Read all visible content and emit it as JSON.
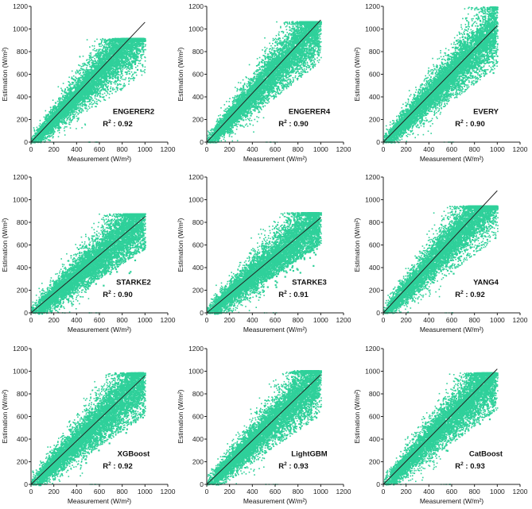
{
  "chart_data": [
    {
      "type": "scatter",
      "model": "ENGERER2",
      "r2_prefix": "R",
      "r2_sup": "2",
      "r2_value": " : 0.92",
      "xlabel": "Measurement (W/m²)",
      "ylabel": "Estimation (W/m²)",
      "xlim": [
        0,
        1200
      ],
      "ylim": [
        0,
        1200
      ],
      "xticks": [
        0,
        200,
        400,
        600,
        800,
        1000,
        1200
      ],
      "yticks": [
        0,
        200,
        400,
        600,
        800,
        1000,
        1200
      ],
      "point_color": "#2fd09a",
      "fit_line": {
        "x": [
          0,
          1000
        ],
        "y": [
          0,
          1060
        ]
      },
      "cloud_max_y": 920,
      "min_y_at_max_x": 700
    },
    {
      "type": "scatter",
      "model": "ENGERER4",
      "r2_prefix": "R",
      "r2_sup": "2",
      "r2_value": " : 0.90",
      "xlabel": "Measurement (W/m²)",
      "ylabel": "Estimation (W/m²)",
      "xlim": [
        0,
        1200
      ],
      "ylim": [
        0,
        1200
      ],
      "xticks": [
        0,
        200,
        400,
        600,
        800,
        1000,
        1200
      ],
      "yticks": [
        0,
        200,
        400,
        600,
        800,
        1000,
        1200
      ],
      "point_color": "#2fd09a",
      "fit_line": {
        "x": [
          0,
          1000
        ],
        "y": [
          0,
          1080
        ]
      },
      "cloud_max_y": 1070,
      "min_y_at_max_x": 800
    },
    {
      "type": "scatter",
      "model": "EVERY",
      "r2_prefix": "R",
      "r2_sup": "2",
      "r2_value": " : 0.90",
      "xlabel": "Measurement (W/m²)",
      "ylabel": "Estimation (W/m²)",
      "xlim": [
        0,
        1200
      ],
      "ylim": [
        0,
        1200
      ],
      "xticks": [
        0,
        200,
        400,
        600,
        800,
        1000,
        1200
      ],
      "yticks": [
        0,
        200,
        400,
        600,
        800,
        1000,
        1200
      ],
      "point_color": "#2fd09a",
      "fit_line": {
        "x": [
          0,
          1000
        ],
        "y": [
          0,
          1030
        ]
      },
      "cloud_max_y": 1200,
      "min_y_at_max_x": 750
    },
    {
      "type": "scatter",
      "model": "STARKE2",
      "r2_prefix": "R",
      "r2_sup": "2",
      "r2_value": " : 0.90",
      "xlabel": "Measurement (W/m²)",
      "ylabel": "Estimation (W/m²)",
      "xlim": [
        0,
        1200
      ],
      "ylim": [
        0,
        1200
      ],
      "xticks": [
        0,
        200,
        400,
        600,
        800,
        1000,
        1200
      ],
      "yticks": [
        0,
        200,
        400,
        600,
        800,
        1000,
        1200
      ],
      "point_color": "#2fd09a",
      "fit_line": {
        "x": [
          0,
          1000
        ],
        "y": [
          0,
          850
        ]
      },
      "cloud_max_y": 880,
      "min_y_at_max_x": 650
    },
    {
      "type": "scatter",
      "model": "STARKE3",
      "r2_prefix": "R",
      "r2_sup": "2",
      "r2_value": " : 0.91",
      "xlabel": "Measurement (W/m²)",
      "ylabel": "Estimation (W/m²)",
      "xlim": [
        0,
        1200
      ],
      "ylim": [
        0,
        1200
      ],
      "xticks": [
        0,
        200,
        400,
        600,
        800,
        1000,
        1200
      ],
      "yticks": [
        0,
        200,
        400,
        600,
        800,
        1000,
        1200
      ],
      "point_color": "#2fd09a",
      "fit_line": {
        "x": [
          0,
          1000
        ],
        "y": [
          0,
          840
        ]
      },
      "cloud_max_y": 890,
      "min_y_at_max_x": 700
    },
    {
      "type": "scatter",
      "model": "YANG4",
      "r2_prefix": "R",
      "r2_sup": "2",
      "r2_value": " : 0.92",
      "xlabel": "Measurement (W/m²)",
      "ylabel": "Estimation (W/m²)",
      "xlim": [
        0,
        1200
      ],
      "ylim": [
        0,
        1200
      ],
      "xticks": [
        0,
        200,
        400,
        600,
        800,
        1000,
        1200
      ],
      "yticks": [
        0,
        200,
        400,
        600,
        800,
        1000,
        1200
      ],
      "point_color": "#2fd09a",
      "fit_line": {
        "x": [
          0,
          1000
        ],
        "y": [
          0,
          1080
        ]
      },
      "cloud_max_y": 950,
      "min_y_at_max_x": 750
    },
    {
      "type": "scatter",
      "model": "XGBoost",
      "r2_prefix": "R",
      "r2_sup": "2",
      "r2_value": " : 0.92",
      "xlabel": "Measurement (W/m²)",
      "ylabel": "Estimation (W/m²)",
      "xlim": [
        0,
        1200
      ],
      "ylim": [
        0,
        1200
      ],
      "xticks": [
        0,
        200,
        400,
        600,
        800,
        1000,
        1200
      ],
      "yticks": [
        0,
        200,
        400,
        600,
        800,
        1000,
        1200
      ],
      "point_color": "#2fd09a",
      "fit_line": {
        "x": [
          0,
          1000
        ],
        "y": [
          0,
          960
        ]
      },
      "cloud_max_y": 990,
      "min_y_at_max_x": 700
    },
    {
      "type": "scatter",
      "model": "LightGBM",
      "r2_prefix": "R",
      "r2_sup": "2",
      "r2_value": " : 0.93",
      "xlabel": "Measurement (W/m²)",
      "ylabel": "Estimation (W/m²)",
      "xlim": [
        0,
        1200
      ],
      "ylim": [
        0,
        1200
      ],
      "xticks": [
        0,
        200,
        400,
        600,
        800,
        1000,
        1200
      ],
      "yticks": [
        0,
        200,
        400,
        600,
        800,
        1000,
        1200
      ],
      "point_color": "#2fd09a",
      "fit_line": {
        "x": [
          0,
          1000
        ],
        "y": [
          0,
          970
        ]
      },
      "cloud_max_y": 1010,
      "min_y_at_max_x": 700
    },
    {
      "type": "scatter",
      "model": "CatBoost",
      "r2_prefix": "R",
      "r2_sup": "2",
      "r2_value": " : 0.93",
      "xlabel": "Measurement (W/m²)",
      "ylabel": "Estimation (W/m²)",
      "xlim": [
        0,
        1200
      ],
      "ylim": [
        0,
        1200
      ],
      "xticks": [
        0,
        200,
        400,
        600,
        800,
        1000,
        1200
      ],
      "yticks": [
        0,
        200,
        400,
        600,
        800,
        1000,
        1200
      ],
      "point_color": "#2fd09a",
      "fit_line": {
        "x": [
          0,
          1000
        ],
        "y": [
          0,
          1020
        ]
      },
      "cloud_max_y": 990,
      "min_y_at_max_x": 750
    }
  ]
}
